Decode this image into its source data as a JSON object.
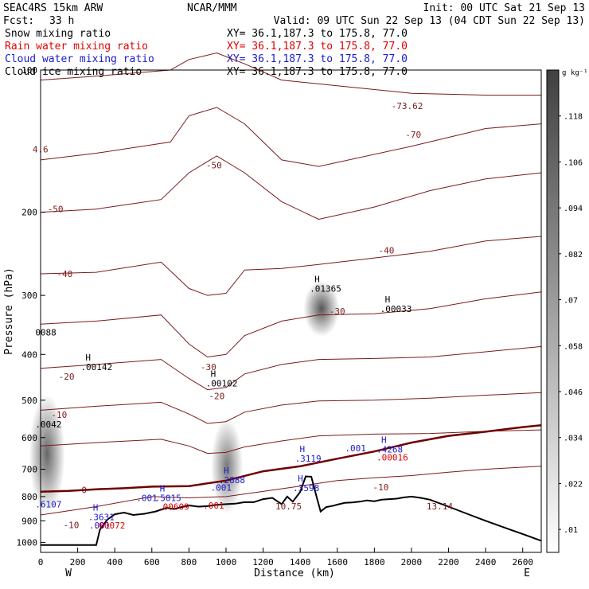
{
  "header": {
    "title_left": "SEAC4RS 15km ARW",
    "title_center": "NCAR/MMM",
    "init": "Init: 00 UTC Sat 21 Sep 13",
    "fcst_label": "Fcst:",
    "fcst_value": "33 h",
    "valid": "Valid: 09 UTC Sun 22 Sep 13 (04 CDT Sun 22 Sep 13)"
  },
  "fields": [
    {
      "label": "Snow mixing ratio",
      "xy": "XY=  36.1,187.3 to 175.8, 77.0",
      "color": "#000000"
    },
    {
      "label": "Rain water mixing ratio",
      "xy": "XY=  36.1,187.3 to 175.8, 77.0",
      "color": "#e00000"
    },
    {
      "label": "Cloud water mixing ratio",
      "xy": "XY=  36.1,187.3 to 175.8, 77.0",
      "color": "#1a1ad0"
    },
    {
      "label": "Cloud ice mixing ratio",
      "xy": "XY=  36.1,187.3 to 175.8, 77.0",
      "color": "#000000"
    }
  ],
  "colors": {
    "temperature": "#7a1a1a",
    "freezing_level": "#6e0000",
    "cloud_water": "#1a1ad0",
    "rain_water": "#e00000",
    "terrain": "#000000"
  },
  "chart_data": {
    "type": "cross-section contour",
    "xlabel": "Distance (km)",
    "ylabel": "Pressure (hPa)",
    "x_range": [
      0,
      2700
    ],
    "y_range_hpa": [
      1050,
      100
    ],
    "x_ticks": [
      "0",
      "200",
      "400",
      "600",
      "800",
      "1000",
      "1200",
      "1400",
      "1600",
      "1800",
      "2000",
      "2200",
      "2400",
      "2600"
    ],
    "y_ticks": [
      "100",
      "200",
      "300",
      "400",
      "500",
      "600",
      "700",
      "800",
      "900",
      "1000"
    ],
    "end_labels": {
      "left": "W",
      "right": "E"
    },
    "colorbar": {
      "unit": "g kg⁻¹",
      "ticks": [
        ".01",
        ".022",
        ".034",
        ".046",
        ".058",
        ".07",
        ".082",
        ".094",
        ".106",
        ".118"
      ]
    },
    "temperature_labels": [
      {
        "text": "-70",
        "x": 2010,
        "p": 137
      },
      {
        "text": "-50",
        "x": 935,
        "p": 159
      },
      {
        "text": "-50",
        "x": 80,
        "p": 197
      },
      {
        "text": "-40",
        "x": 130,
        "p": 270
      },
      {
        "text": "-40",
        "x": 1865,
        "p": 241
      },
      {
        "text": "-30",
        "x": 1600,
        "p": 324
      },
      {
        "text": "-30",
        "x": 905,
        "p": 425
      },
      {
        "text": "-20",
        "x": 140,
        "p": 445
      },
      {
        "text": "-20",
        "x": 950,
        "p": 490
      },
      {
        "text": "-10",
        "x": 100,
        "p": 537
      },
      {
        "text": "-10",
        "x": 1835,
        "p": 764
      },
      {
        "text": "-10",
        "x": 165,
        "p": 919
      },
      {
        "text": "0",
        "x": 235,
        "p": 775
      }
    ],
    "extrema_labels": [
      {
        "text": "4.6",
        "x": 25,
        "p": 147,
        "field": "temperature"
      },
      {
        "text": "-73.62",
        "x": 1960,
        "p": 119,
        "field": "temperature"
      },
      {
        "text": "10.75",
        "x": 1335,
        "p": 838,
        "field": "temperature"
      },
      {
        "text": "13.14",
        "x": 2150,
        "p": 838,
        "field": "temperature"
      },
      {
        "text": ".01365",
        "x": 1520,
        "p": 290,
        "field": "ice",
        "H": true
      },
      {
        "text": ".00033",
        "x": 1900,
        "p": 320,
        "field": "ice",
        "H": true
      },
      {
        "text": ".00142",
        "x": 285,
        "p": 425,
        "field": "ice",
        "H": true
      },
      {
        "text": ".00102",
        "x": 960,
        "p": 460,
        "field": "ice",
        "H": true
      },
      {
        "text": "0088",
        "x": 40,
        "p": 359,
        "field": "ice",
        "H": false
      },
      {
        "text": ".0042",
        "x": 40,
        "p": 562,
        "field": "snow",
        "H": false
      },
      {
        "text": ".2888",
        "x": 1030,
        "p": 737,
        "field": "cloud",
        "H": true
      },
      {
        "text": ".001",
        "x": 985,
        "p": 765,
        "field": "cloud",
        "H": false
      },
      {
        "text": ".001",
        "x": 1710,
        "p": 632,
        "field": "cloud",
        "H": false
      },
      {
        "text": ".4268",
        "x": 1880,
        "p": 635,
        "field": "cloud",
        "H": true
      },
      {
        "text": ".3119",
        "x": 1440,
        "p": 664,
        "field": "cloud",
        "H": true
      },
      {
        "text": ".3598",
        "x": 1430,
        "p": 767,
        "field": "cloud",
        "H": true
      },
      {
        "text": ".3631",
        "x": 325,
        "p": 884,
        "field": "cloud",
        "H": true
      },
      {
        "text": ".5015",
        "x": 685,
        "p": 805,
        "field": "cloud",
        "H": true
      },
      {
        "text": ".001",
        "x": 585,
        "p": 805,
        "field": "cloud",
        "H": false
      },
      {
        "text": ".6107",
        "x": 40,
        "p": 830,
        "field": "cloud",
        "H": false
      },
      {
        "text": ".001",
        "x": 330,
        "p": 920,
        "field": "cloud",
        "H": false
      },
      {
        "text": ".00016",
        "x": 1880,
        "p": 660,
        "field": "rain",
        "H": false
      },
      {
        "text": ".00609",
        "x": 700,
        "p": 840,
        "field": "rain",
        "H": false
      },
      {
        "text": ".00072",
        "x": 355,
        "p": 920,
        "field": "rain",
        "H": false
      },
      {
        "text": ".001",
        "x": 945,
        "p": 835,
        "field": "rain",
        "H": false
      }
    ],
    "terrain": {
      "x": [
        0,
        150,
        300,
        320,
        360,
        400,
        450,
        500,
        560,
        620,
        680,
        720,
        760,
        800,
        850,
        900,
        950,
        1000,
        1050,
        1100,
        1150,
        1200,
        1250,
        1300,
        1330,
        1360,
        1400,
        1430,
        1460,
        1490,
        1510,
        1540,
        1580,
        1600,
        1640,
        1680,
        1720,
        1760,
        1800,
        1840,
        1880,
        1920,
        1960,
        2000,
        2050,
        2100,
        2200,
        2300,
        2400,
        2500,
        2600,
        2700
      ],
      "p": [
        1013,
        1013,
        1013,
        940,
        895,
        872,
        865,
        875,
        870,
        860,
        845,
        850,
        842,
        835,
        840,
        838,
        833,
        830,
        828,
        822,
        822,
        810,
        805,
        830,
        800,
        820,
        782,
        725,
        726,
        805,
        860,
        842,
        836,
        832,
        825,
        823,
        820,
        815,
        818,
        812,
        810,
        808,
        803,
        800,
        805,
        812,
        840,
        870,
        900,
        930,
        960,
        992
      ]
    },
    "zero_isotherm": {
      "x": [
        0,
        150,
        300,
        450,
        600,
        800,
        1000,
        1200,
        1400,
        1600,
        1800,
        2000,
        2200,
        2400,
        2600,
        2700
      ],
      "p": [
        781,
        778,
        772,
        768,
        762,
        760,
        740,
        707,
        690,
        665,
        642,
        615,
        595,
        583,
        570,
        565
      ]
    },
    "temperature_levels": [
      {
        "x": [
          0,
          300,
          700,
          800,
          950,
          1100,
          1300,
          1600,
          2000,
          2400,
          2700
        ],
        "p": [
          105,
          103,
          100,
          95,
          92,
          97,
          105,
          108,
          112,
          113,
          113
        ]
      },
      {
        "x": [
          0,
          300,
          700,
          800,
          950,
          1100,
          1300,
          1500,
          2000,
          2400,
          2700
        ],
        "p": [
          155,
          150,
          142,
          125,
          120,
          130,
          155,
          160,
          145,
          133,
          130
        ]
      },
      {
        "x": [
          0,
          300,
          650,
          800,
          950,
          1100,
          1300,
          1500,
          1800,
          2100,
          2400,
          2700
        ],
        "p": [
          200,
          197,
          188,
          165,
          152,
          165,
          190,
          207,
          195,
          180,
          170,
          165
        ]
      },
      {
        "x": [
          0,
          300,
          650,
          800,
          900,
          1000,
          1100,
          1300,
          1500,
          1800,
          2100,
          2400,
          2700
        ],
        "p": [
          270,
          268,
          255,
          290,
          300,
          297,
          265,
          263,
          258,
          250,
          242,
          230,
          225
        ]
      },
      {
        "x": [
          0,
          300,
          650,
          800,
          900,
          1000,
          1100,
          1300,
          1500,
          1800,
          2100,
          2400,
          2700
        ],
        "p": [
          345,
          340,
          330,
          380,
          405,
          400,
          365,
          340,
          330,
          328,
          320,
          305,
          295
        ]
      },
      {
        "x": [
          0,
          300,
          650,
          800,
          900,
          1000,
          1100,
          1300,
          1500,
          1800,
          2100,
          2400,
          2700
        ],
        "p": [
          428,
          420,
          410,
          450,
          475,
          470,
          440,
          420,
          410,
          408,
          405,
          395,
          385
        ]
      },
      {
        "x": [
          0,
          300,
          650,
          800,
          900,
          1000,
          1100,
          1300,
          1500,
          1800,
          2100,
          2400,
          2700
        ],
        "p": [
          525,
          515,
          505,
          535,
          560,
          555,
          530,
          512,
          502,
          500,
          495,
          488,
          482
        ]
      },
      {
        "x": [
          0,
          300,
          650,
          800,
          900,
          1000,
          1100,
          1300,
          1500,
          1800,
          2100,
          2400,
          2700
        ],
        "p": [
          625,
          615,
          605,
          625,
          648,
          645,
          628,
          610,
          595,
          590,
          588,
          582,
          578
        ]
      },
      {
        "x": [
          0,
          300,
          600,
          800,
          1000,
          1200,
          1400,
          1600,
          1800,
          2000,
          2200,
          2400,
          2700
        ],
        "p": [
          875,
          840,
          800,
          805,
          800,
          780,
          760,
          740,
          730,
          722,
          710,
          700,
          690
        ]
      }
    ],
    "shading": [
      {
        "x": 1515,
        "p": 320,
        "w": 45,
        "h": 70,
        "v": 0.09
      },
      {
        "x": 1005,
        "p": 690,
        "w": 40,
        "h": 120,
        "v": 0.07
      },
      {
        "x": 35,
        "p": 650,
        "w": 45,
        "h": 150,
        "v": 0.08
      }
    ]
  }
}
